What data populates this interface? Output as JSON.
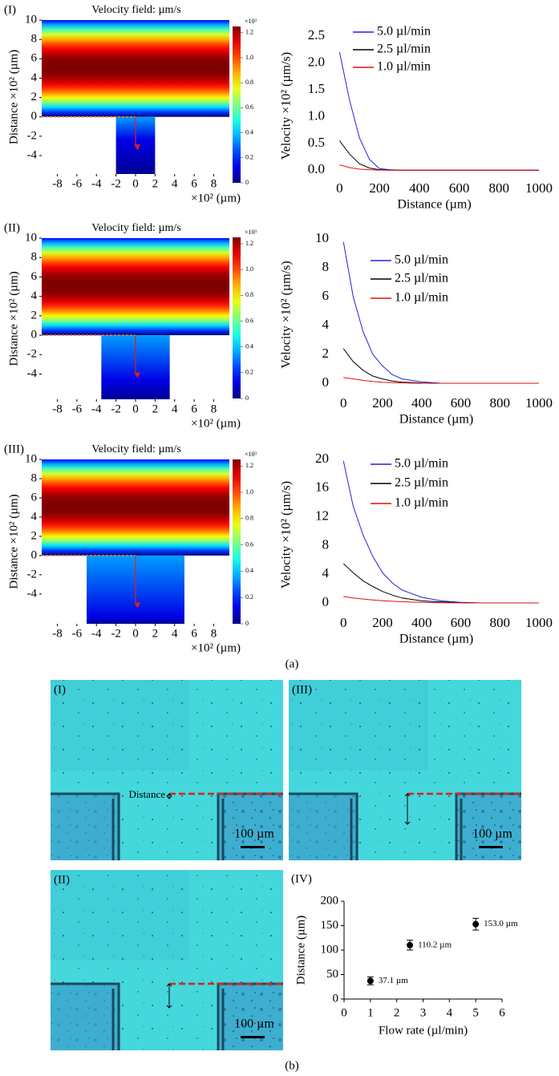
{
  "figure_labels": {
    "a": "(a)",
    "b": "(b)"
  },
  "chart_data": [
    {
      "type": "heatmap",
      "panel": "(I)",
      "title": "Velocity field: µm/s",
      "xlabel": "×10² (µm)",
      "ylabel": "Distance ×10² (µm)",
      "xlim": [
        -9.6,
        9.6
      ],
      "ylim": [
        -5.9,
        10
      ],
      "xticks": [
        -8,
        -6,
        -4,
        -2,
        0,
        2,
        4,
        6,
        8
      ],
      "yticks": [
        10,
        8,
        6,
        4,
        2,
        0,
        -2,
        -4
      ],
      "outlet_x": [
        -2,
        2
      ],
      "colorbar_label": "×10³",
      "clim": [
        0,
        1.25
      ],
      "colorbar_ticks": [
        0,
        0.2,
        0.4,
        0.6,
        0.8,
        {
          "value": 1,
          "label": "1.0"
        },
        1.2
      ]
    },
    {
      "type": "line",
      "xlabel": "Distance (µm)",
      "ylabel": "Velocity ×10² (µm/s)",
      "xlim": [
        -50,
        1000
      ],
      "ylim": [
        -0.1,
        2.5
      ],
      "xticks": [
        0,
        200,
        400,
        600,
        800,
        1000
      ],
      "yticks": [
        {
          "value": 0,
          "label": "0.0"
        },
        0.5,
        {
          "value": 1,
          "label": "1.0"
        },
        1.5,
        {
          "value": 2,
          "label": "2.0"
        },
        2.5
      ],
      "x": [
        0,
        50,
        100,
        150,
        200,
        250,
        300,
        400,
        500,
        600,
        700,
        800,
        900,
        1000
      ],
      "series": [
        {
          "name": "5.0 µl/min",
          "color": "#2222dd",
          "values": [
            2.2,
            1.3,
            0.6,
            0.2,
            0.03,
            0.01,
            0,
            0,
            0,
            0,
            0,
            0,
            0,
            0
          ]
        },
        {
          "name": "2.5 µl/min",
          "color": "#000000",
          "values": [
            0.55,
            0.3,
            0.12,
            0.04,
            0.01,
            0,
            0,
            0,
            0,
            0,
            0,
            0,
            0,
            0
          ]
        },
        {
          "name": "1.0 µl/min",
          "color": "#dd1111",
          "values": [
            0.1,
            0.05,
            0.02,
            0.01,
            0,
            0,
            0,
            0,
            0,
            0,
            0,
            0,
            0,
            0
          ]
        }
      ]
    },
    {
      "type": "heatmap",
      "panel": "(II)",
      "title": "Velocity field: µm/s",
      "xlabel": "×10² (µm)",
      "ylabel": "Distance ×10² (µm)",
      "xlim": [
        -9.6,
        9.6
      ],
      "ylim": [
        -6.6,
        10
      ],
      "xticks": [
        -8,
        -6,
        -4,
        -2,
        0,
        2,
        4,
        6,
        8
      ],
      "yticks": [
        10,
        8,
        6,
        4,
        2,
        0,
        -2,
        -4
      ],
      "outlet_x": [
        -3.5,
        3.5
      ],
      "colorbar_label": "×10³",
      "clim": [
        0,
        1.25
      ],
      "colorbar_ticks": [
        0,
        0.2,
        0.4,
        0.6,
        0.8,
        {
          "value": 1,
          "label": "1.0"
        },
        1.2
      ]
    },
    {
      "type": "line",
      "xlabel": "Distance (µm)",
      "ylabel": "Velocity ×10² (µm/s)",
      "xlim": [
        -50,
        1000
      ],
      "ylim": [
        -0.5,
        10
      ],
      "xticks": [
        0,
        200,
        400,
        600,
        800,
        1000
      ],
      "yticks": [
        0,
        2,
        4,
        6,
        8,
        10
      ],
      "x": [
        0,
        50,
        100,
        150,
        200,
        250,
        300,
        400,
        500,
        600,
        700,
        800,
        900,
        1000
      ],
      "series": [
        {
          "name": "5.0 µl/min",
          "color": "#2222dd",
          "values": [
            9.8,
            6.0,
            3.6,
            2.0,
            1.2,
            0.6,
            0.3,
            0.1,
            0,
            0,
            0,
            0,
            0,
            0
          ]
        },
        {
          "name": "2.5 µl/min",
          "color": "#000000",
          "values": [
            2.4,
            1.5,
            0.9,
            0.5,
            0.3,
            0.15,
            0.08,
            0.02,
            0,
            0,
            0,
            0,
            0,
            0
          ]
        },
        {
          "name": "1.0 µl/min",
          "color": "#dd1111",
          "values": [
            0.4,
            0.3,
            0.2,
            0.12,
            0.07,
            0.04,
            0.02,
            0,
            0,
            0,
            0,
            0,
            0,
            0
          ]
        }
      ]
    },
    {
      "type": "heatmap",
      "panel": "(III)",
      "title": "Velocity field: µm/s",
      "xlabel": "×10² (µm)",
      "ylabel": "Distance ×10² (µm)",
      "xlim": [
        -9.6,
        9.6
      ],
      "ylim": [
        -7.1,
        10
      ],
      "xticks": [
        -8,
        -6,
        -4,
        -2,
        0,
        2,
        4,
        6,
        8
      ],
      "yticks": [
        10,
        8,
        6,
        4,
        2,
        0,
        -2,
        -4
      ],
      "outlet_x": [
        -5,
        5
      ],
      "colorbar_label": "×10³",
      "clim": [
        0,
        1.25
      ],
      "colorbar_ticks": [
        0,
        0.2,
        0.4,
        0.6,
        0.8,
        {
          "value": 1,
          "label": "1.0"
        },
        1.2
      ]
    },
    {
      "type": "line",
      "xlabel": "Distance (µm)",
      "ylabel": "Velocity ×10² (µm/s)",
      "xlim": [
        -50,
        1000
      ],
      "ylim": [
        -1,
        20
      ],
      "xticks": [
        0,
        200,
        400,
        600,
        800,
        1000
      ],
      "yticks": [
        0,
        4,
        8,
        12,
        16,
        20
      ],
      "x": [
        0,
        50,
        100,
        150,
        200,
        250,
        300,
        400,
        500,
        600,
        700,
        800,
        900,
        1000
      ],
      "series": [
        {
          "name": "5.0 µl/min",
          "color": "#2222dd",
          "values": [
            19.8,
            13.5,
            9.5,
            6.5,
            4.2,
            2.8,
            1.8,
            0.8,
            0.3,
            0.1,
            0,
            0,
            0,
            0
          ]
        },
        {
          "name": "2.5 µl/min",
          "color": "#000000",
          "values": [
            5.5,
            4.2,
            3.1,
            2.3,
            1.6,
            1.1,
            0.7,
            0.3,
            0.15,
            0.05,
            0,
            0,
            0,
            0
          ]
        },
        {
          "name": "1.0 µl/min",
          "color": "#dd1111",
          "values": [
            0.9,
            0.7,
            0.55,
            0.42,
            0.32,
            0.24,
            0.17,
            0.09,
            0.04,
            0.02,
            0,
            0,
            0,
            0
          ]
        }
      ]
    },
    {
      "type": "photo",
      "panel": "(I)",
      "annotation": "Distance",
      "scale_bar": "100 µm"
    },
    {
      "type": "photo",
      "panel": "(III)",
      "scale_bar": "100 µm"
    },
    {
      "type": "photo",
      "panel": "(II)",
      "scale_bar": "100 µm"
    },
    {
      "type": "scatter",
      "panel": "(IV)",
      "xlabel": "Flow rate (µl/min)",
      "ylabel": "Distance (µm)",
      "xlim": [
        0,
        6
      ],
      "ylim": [
        0,
        200
      ],
      "xticks": [
        0,
        1,
        2,
        3,
        4,
        5,
        6
      ],
      "yticks": [
        0,
        50,
        100,
        150,
        200
      ],
      "x": [
        1,
        2.5,
        5
      ],
      "values": [
        37.1,
        110.2,
        153.0
      ],
      "errors": [
        8,
        10,
        12
      ],
      "value_labels": [
        "37.1 µm",
        "110.2 µm",
        "153.0 µm"
      ],
      "color": "#000000"
    }
  ]
}
